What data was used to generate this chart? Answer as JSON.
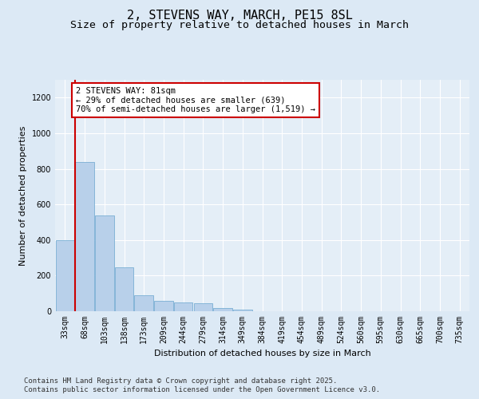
{
  "title": "2, STEVENS WAY, MARCH, PE15 8SL",
  "subtitle": "Size of property relative to detached houses in March",
  "xlabel": "Distribution of detached houses by size in March",
  "ylabel": "Number of detached properties",
  "bar_color": "#b8d0ea",
  "bar_edge_color": "#7aafd4",
  "background_color": "#dce9f5",
  "plot_bg_color": "#e4eef7",
  "categories": [
    "33sqm",
    "68sqm",
    "103sqm",
    "138sqm",
    "173sqm",
    "209sqm",
    "244sqm",
    "279sqm",
    "314sqm",
    "349sqm",
    "384sqm",
    "419sqm",
    "454sqm",
    "489sqm",
    "524sqm",
    "560sqm",
    "595sqm",
    "630sqm",
    "665sqm",
    "700sqm",
    "735sqm"
  ],
  "values": [
    400,
    840,
    540,
    245,
    90,
    60,
    50,
    45,
    20,
    10,
    0,
    0,
    0,
    0,
    0,
    0,
    0,
    0,
    0,
    0,
    0
  ],
  "ylim": [
    0,
    1300
  ],
  "yticks": [
    0,
    200,
    400,
    600,
    800,
    1000,
    1200
  ],
  "property_line_x": 0.5,
  "annotation_text": "2 STEVENS WAY: 81sqm\n← 29% of detached houses are smaller (639)\n70% of semi-detached houses are larger (1,519) →",
  "footnote1": "Contains HM Land Registry data © Crown copyright and database right 2025.",
  "footnote2": "Contains public sector information licensed under the Open Government Licence v3.0.",
  "red_line_color": "#cc0000",
  "annotation_box_color": "#cc0000",
  "title_fontsize": 11,
  "subtitle_fontsize": 9.5,
  "axis_label_fontsize": 8,
  "tick_fontsize": 7,
  "annotation_fontsize": 7.5,
  "footnote_fontsize": 6.5
}
